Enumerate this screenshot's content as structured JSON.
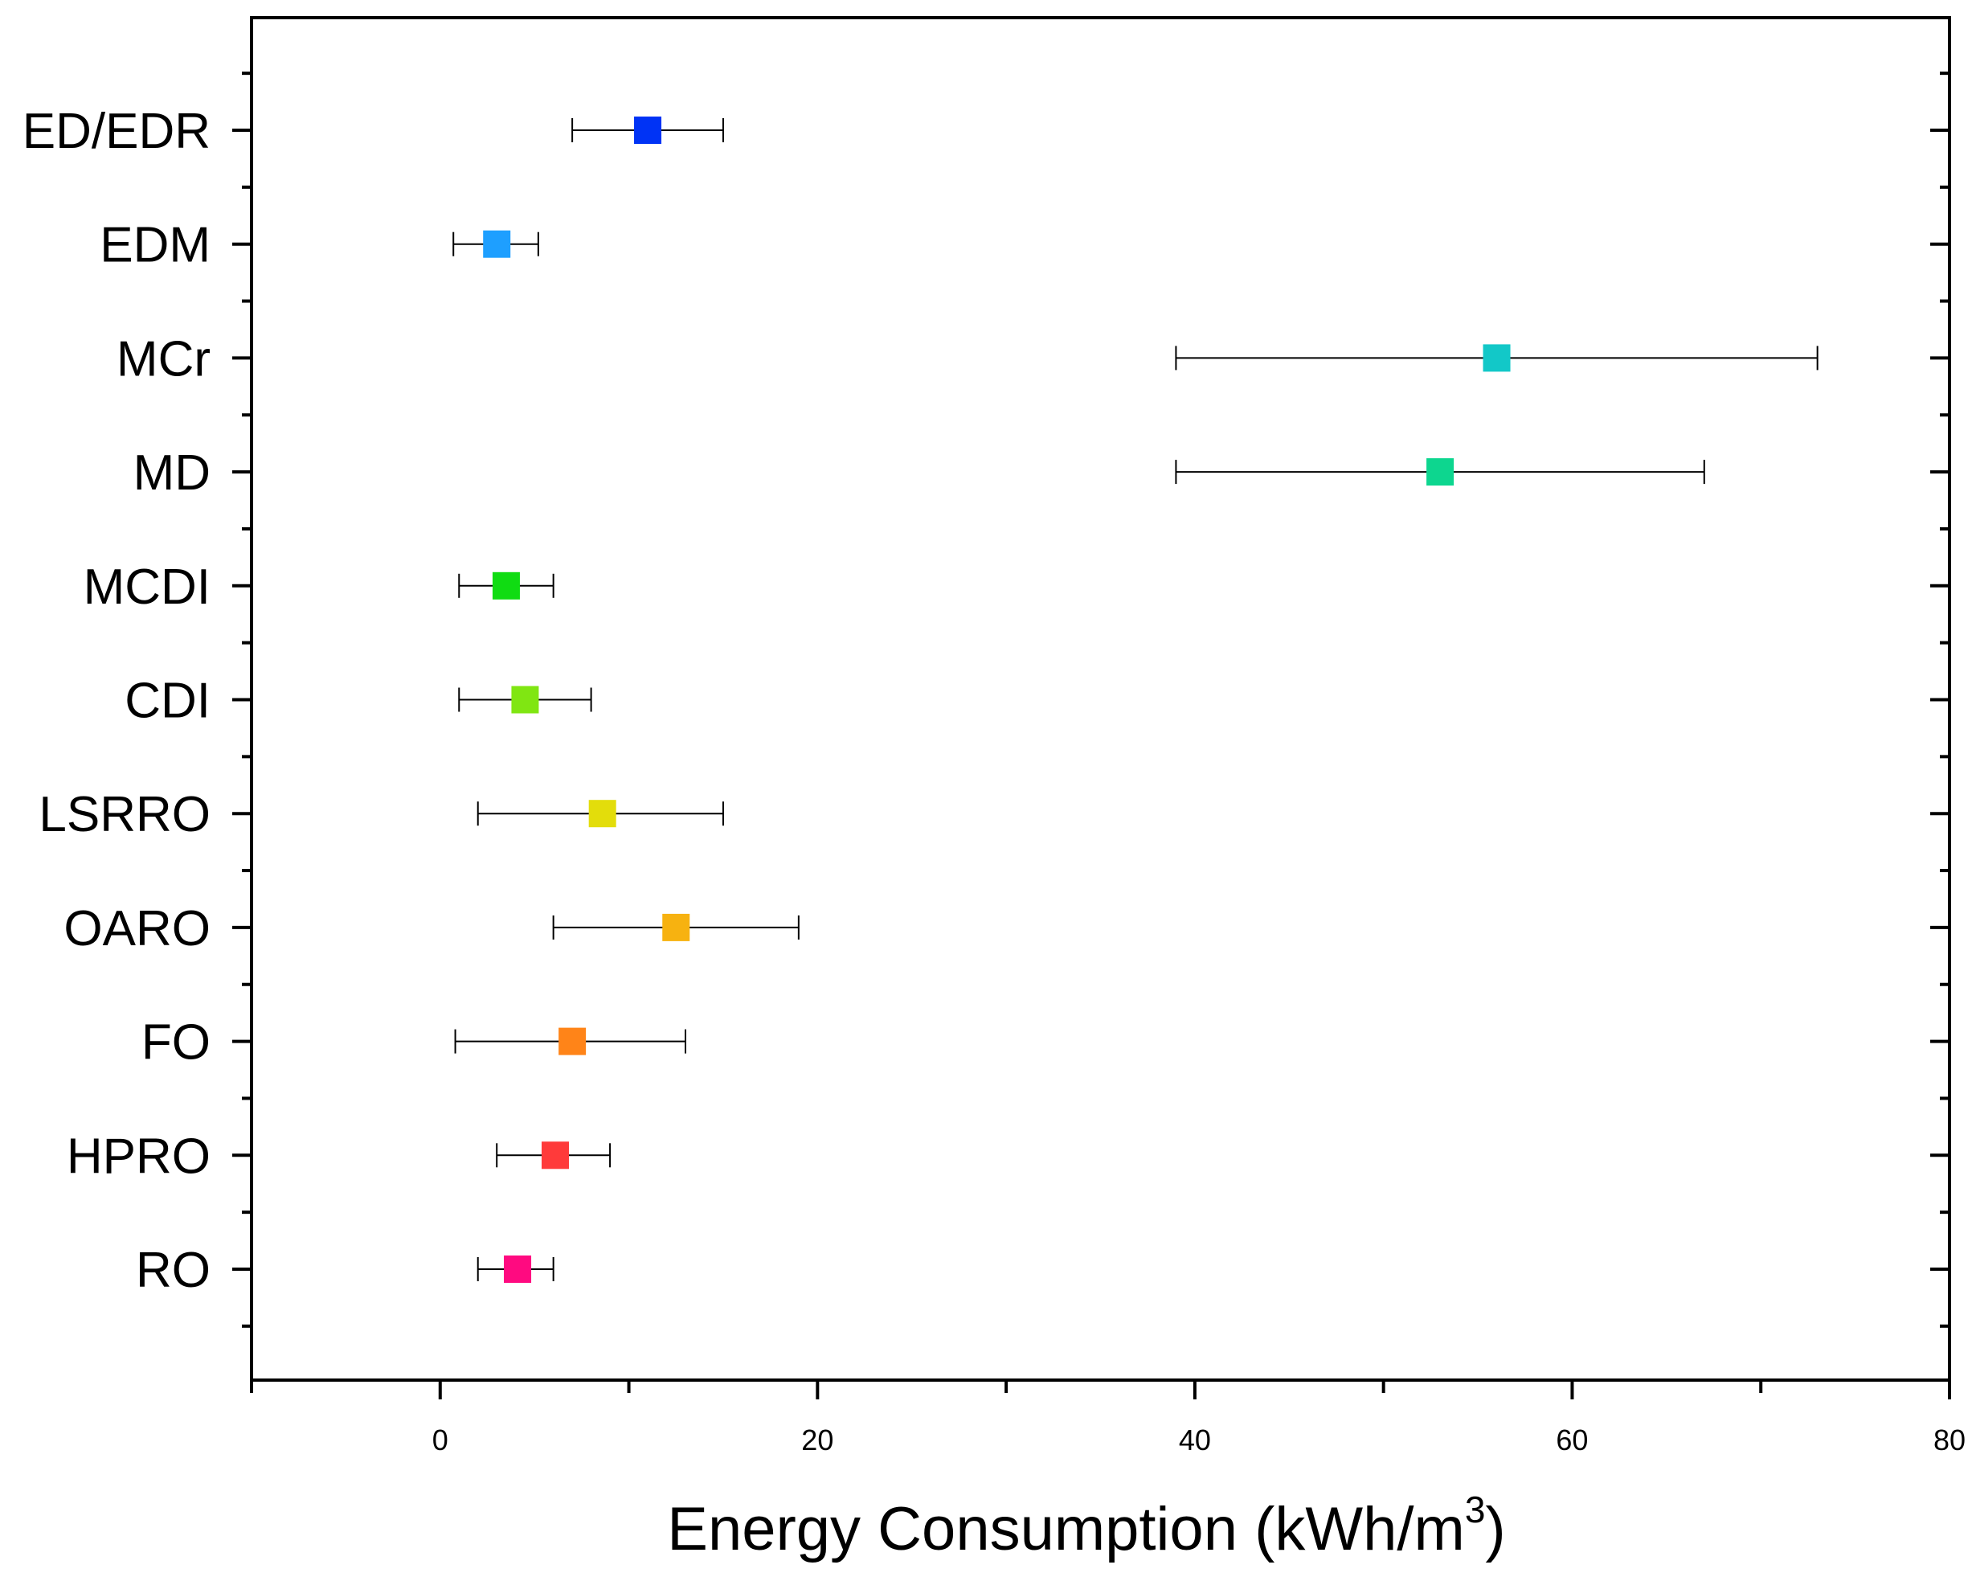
{
  "chart_data": {
    "type": "scatter",
    "title": "",
    "xlabel_main": "Energy Consumption (kWh/m",
    "xlabel_sup": "3",
    "xlabel_close": ")",
    "ylabel": "",
    "xlim": [
      -10,
      80
    ],
    "xticks": [
      0,
      20,
      40,
      60,
      80
    ],
    "grid": false,
    "legend": "none",
    "categories": [
      "ED/EDR",
      "EDM",
      "MCr",
      "MD",
      "MCDI",
      "CDI",
      "LSRRO",
      "OARO",
      "FO",
      "HPRO",
      "RO"
    ],
    "points": [
      {
        "label": "ED/EDR",
        "value": 11.0,
        "err_low": 7.0,
        "err_high": 15.0,
        "color": "#0033f5"
      },
      {
        "label": "EDM",
        "value": 3.0,
        "err_low": 0.7,
        "err_high": 5.2,
        "color": "#1e9fff"
      },
      {
        "label": "MCr",
        "value": 56.0,
        "err_low": 39.0,
        "err_high": 73.0,
        "color": "#12c8c8"
      },
      {
        "label": "MD",
        "value": 53.0,
        "err_low": 39.0,
        "err_high": 67.0,
        "color": "#0dd68f"
      },
      {
        "label": "MCDI",
        "value": 3.5,
        "err_low": 1.0,
        "err_high": 6.0,
        "color": "#10dc12"
      },
      {
        "label": "CDI",
        "value": 4.5,
        "err_low": 1.0,
        "err_high": 8.0,
        "color": "#80e612"
      },
      {
        "label": "LSRRO",
        "value": 8.6,
        "err_low": 2.0,
        "err_high": 15.0,
        "color": "#e3dd0b"
      },
      {
        "label": "OARO",
        "value": 12.5,
        "err_low": 6.0,
        "err_high": 19.0,
        "color": "#f7b210"
      },
      {
        "label": "FO",
        "value": 7.0,
        "err_low": 0.8,
        "err_high": 13.0,
        "color": "#ff8418"
      },
      {
        "label": "HPRO",
        "value": 6.1,
        "err_low": 3.0,
        "err_high": 9.0,
        "color": "#ff3a3a"
      },
      {
        "label": "RO",
        "value": 4.1,
        "err_low": 2.0,
        "err_high": 6.0,
        "color": "#ff0a80"
      }
    ]
  }
}
